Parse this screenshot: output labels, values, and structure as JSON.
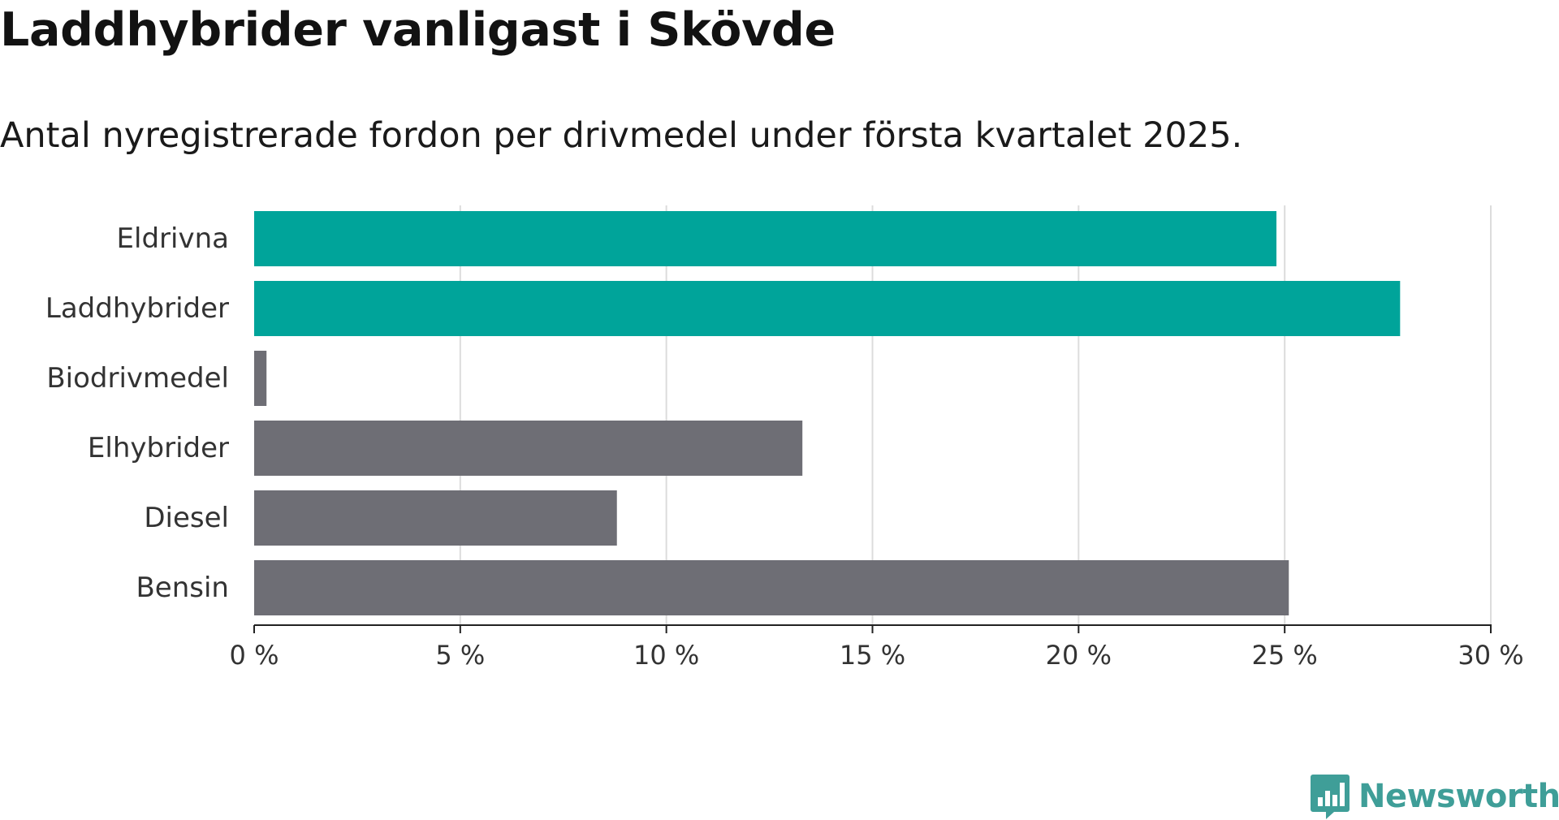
{
  "title": "Laddhybrider vanligast i Skövde",
  "subtitle": "Antal nyregistrerade fordon per drivmedel under första kvartalet 2025.",
  "brand": {
    "name": "Newsworthy",
    "logo_icon": "bar-chart-speech-bubble-icon",
    "color": "#3f9e98"
  },
  "colors": {
    "highlight": "#00a49a",
    "default": "#6e6e75",
    "grid": "#dcdcdc",
    "axis": "#222222"
  },
  "chart_data": {
    "type": "bar",
    "orientation": "horizontal",
    "categories": [
      "Eldrivna",
      "Laddhybrider",
      "Biodrivmedel",
      "Elhybrider",
      "Diesel",
      "Bensin"
    ],
    "values": [
      24.8,
      27.8,
      0.3,
      13.3,
      8.8,
      25.1
    ],
    "highlighted": [
      "Eldrivna",
      "Laddhybrider"
    ],
    "xlim": [
      0,
      30
    ],
    "xticks": [
      0,
      5,
      10,
      15,
      20,
      25,
      30
    ],
    "xtick_labels": [
      "0 %",
      "5 %",
      "10 %",
      "15 %",
      "20 %",
      "25 %",
      "30 %"
    ],
    "grid": true,
    "legend": "none"
  }
}
